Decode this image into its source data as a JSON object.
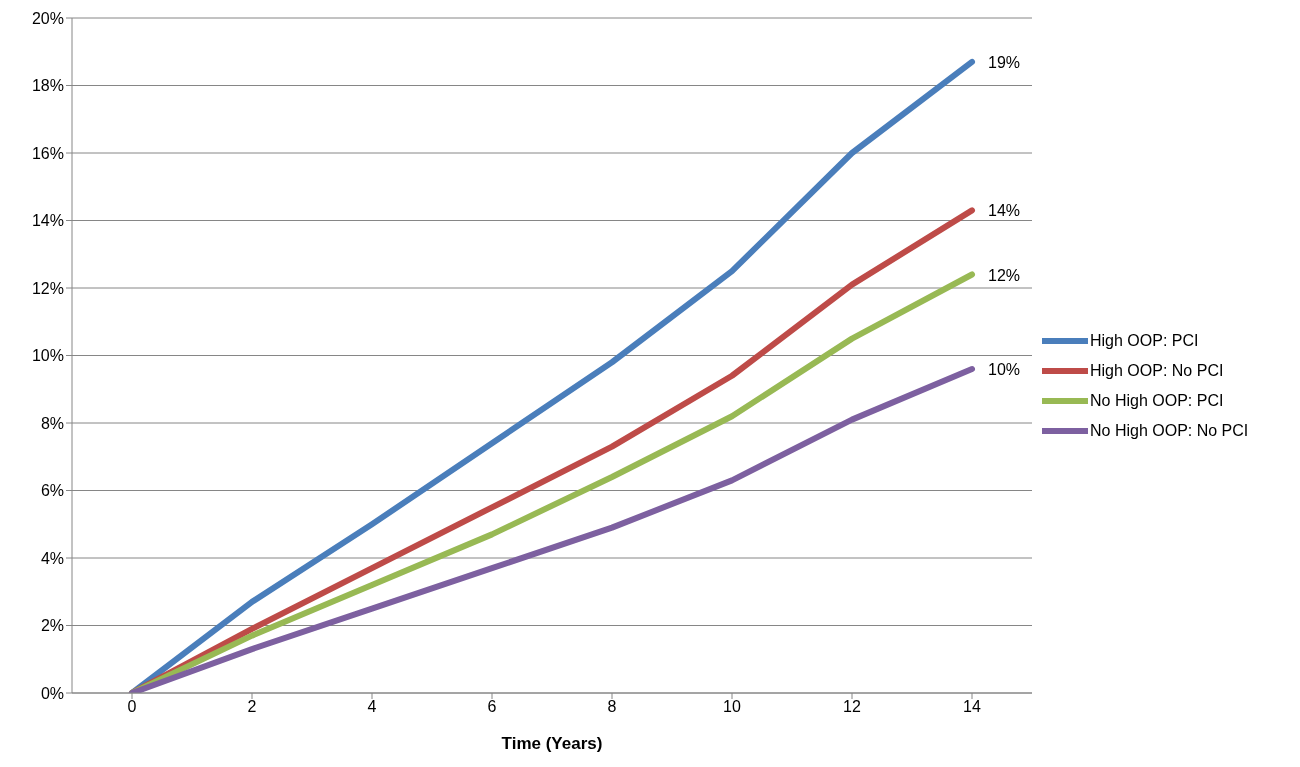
{
  "chart_data": {
    "type": "line",
    "xlabel": "Time (Years)",
    "categories": [
      "0",
      "2",
      "4",
      "6",
      "8",
      "10",
      "12",
      "14"
    ],
    "series": [
      {
        "name": "High OOP: PCI",
        "color": "#4a7ebb",
        "values": [
          0,
          2.7,
          5.0,
          7.4,
          9.8,
          12.5,
          16.0,
          18.7
        ],
        "value_labels": [
          null,
          null,
          null,
          null,
          null,
          null,
          null,
          "19%"
        ]
      },
      {
        "name": "High OOP: No PCI",
        "color": "#be4b48",
        "values": [
          0,
          1.9,
          3.7,
          5.5,
          7.3,
          9.4,
          12.1,
          14.3
        ],
        "value_labels": [
          null,
          null,
          null,
          null,
          null,
          null,
          null,
          "14%"
        ]
      },
      {
        "name": "No High OOP: PCI",
        "color": "#98b954",
        "values": [
          0,
          1.7,
          3.2,
          4.7,
          6.4,
          8.2,
          10.5,
          12.4
        ],
        "value_labels": [
          null,
          null,
          null,
          null,
          null,
          null,
          null,
          "12%"
        ]
      },
      {
        "name": "No High OOP: No PCI",
        "color": "#7d60a0",
        "values": [
          0,
          1.3,
          2.5,
          3.7,
          4.9,
          6.3,
          8.1,
          9.6
        ],
        "value_labels": [
          null,
          null,
          null,
          null,
          null,
          null,
          null,
          "10%"
        ]
      }
    ],
    "ylim": [
      0,
      20
    ],
    "yticks": [
      {
        "value": 0,
        "label": "0%"
      },
      {
        "value": 2,
        "label": "2%"
      },
      {
        "value": 4,
        "label": "4%"
      },
      {
        "value": 6,
        "label": "6%"
      },
      {
        "value": 8,
        "label": "8%"
      },
      {
        "value": 10,
        "label": "10%"
      },
      {
        "value": 12,
        "label": "12%"
      },
      {
        "value": 14,
        "label": "14%"
      },
      {
        "value": 16,
        "label": "16%"
      },
      {
        "value": 18,
        "label": "18%"
      },
      {
        "value": 20,
        "label": "20%"
      }
    ],
    "grid": "y",
    "legend": "right",
    "marker": "none",
    "line_style": "solid"
  }
}
